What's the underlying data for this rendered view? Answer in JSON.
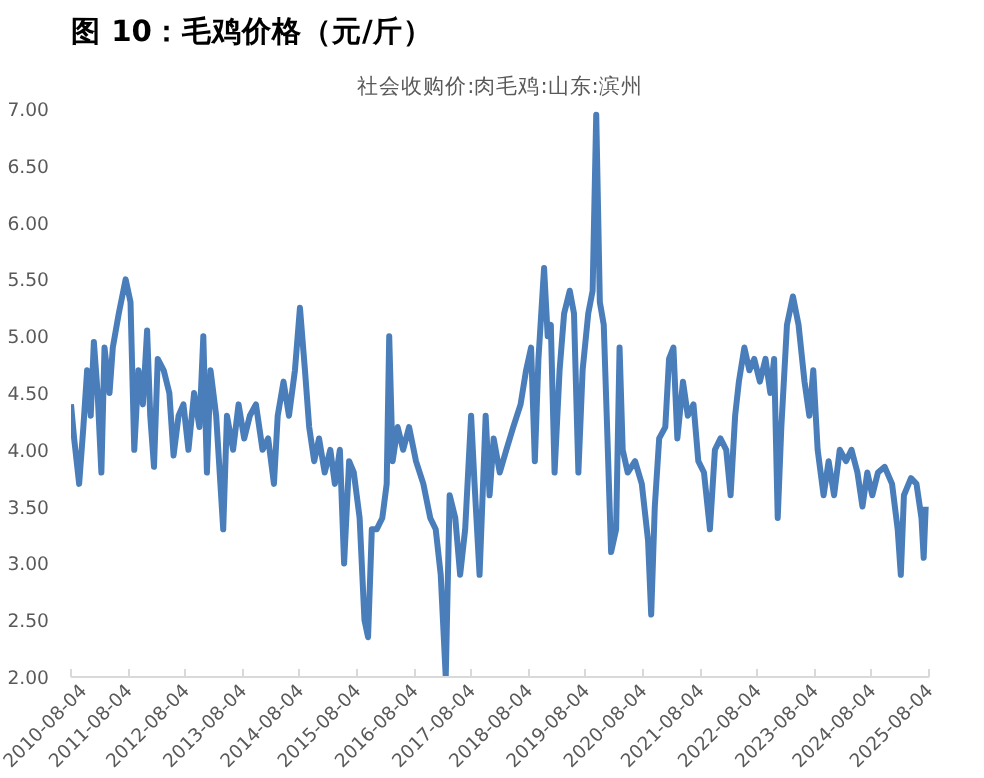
{
  "chart_data": {
    "type": "line",
    "title": "图 10：毛鸡价格（元/斤）",
    "subtitle": "社会收购价:肉毛鸡:山东:滨州",
    "xlim": [
      "2010-08-04",
      "2025-08-04"
    ],
    "xticks": [
      "2010-08-04",
      "2011-08-04",
      "2012-08-04",
      "2013-08-04",
      "2014-08-04",
      "2015-08-04",
      "2016-08-04",
      "2017-08-04",
      "2018-08-04",
      "2019-08-04",
      "2020-08-04",
      "2021-08-04",
      "2022-08-04",
      "2023-08-04",
      "2024-08-04",
      "2025-08-04"
    ],
    "ylim": [
      2,
      7
    ],
    "yticks": [
      {
        "value": 2,
        "label": "2.00"
      },
      {
        "value": 2.5,
        "label": "2.50"
      },
      {
        "value": 3,
        "label": "3.00"
      },
      {
        "value": 3.5,
        "label": "3.50"
      },
      {
        "value": 4,
        "label": "4.00"
      },
      {
        "value": 4.5,
        "label": "4.50"
      },
      {
        "value": 5,
        "label": "5.00"
      },
      {
        "value": 5.5,
        "label": "5.50"
      },
      {
        "value": 6,
        "label": "6.00"
      },
      {
        "value": 6.5,
        "label": "6.50"
      },
      {
        "value": 7,
        "label": "7.00"
      }
    ],
    "grid": false,
    "line_style": "solid",
    "marker": "none",
    "series": [
      {
        "color": "#4a7ebb",
        "x": [
          "2010-08-04",
          "2010-08-24",
          "2010-09-25",
          "2010-10-22",
          "2010-11-15",
          "2010-12-08",
          "2010-12-28",
          "2011-01-21",
          "2011-02-14",
          "2011-03-06",
          "2011-04-07",
          "2011-04-28",
          "2011-06-05",
          "2011-07-19",
          "2011-08-19",
          "2011-09-12",
          "2011-10-09",
          "2011-11-06",
          "2011-12-03",
          "2011-12-23",
          "2012-01-16",
          "2012-02-09",
          "2012-03-18",
          "2012-04-23",
          "2012-05-20",
          "2012-06-21",
          "2012-07-22",
          "2012-08-23",
          "2012-09-28",
          "2012-11-01",
          "2012-11-26",
          "2012-12-19",
          "2013-01-11",
          "2013-02-16",
          "2013-04-02",
          "2013-04-26",
          "2013-06-04",
          "2013-07-09",
          "2013-08-14",
          "2013-09-19",
          "2013-10-28",
          "2013-12-09",
          "2014-01-14",
          "2014-02-20",
          "2014-03-16",
          "2014-04-22",
          "2014-05-27",
          "2014-07-04",
          "2014-08-05",
          "2014-09-06",
          "2014-10-03",
          "2014-11-04",
          "2014-12-05",
          "2015-01-10",
          "2015-02-15",
          "2015-03-16",
          "2015-04-17",
          "2015-05-14",
          "2015-06-15",
          "2015-07-15",
          "2015-08-21",
          "2015-09-21",
          "2015-10-14",
          "2015-11-07",
          "2015-12-08",
          "2016-01-13",
          "2016-02-10",
          "2016-02-26",
          "2016-03-19",
          "2016-04-20",
          "2016-05-25",
          "2016-07-02",
          "2016-08-15",
          "2016-10-01",
          "2016-11-14",
          "2016-12-19",
          "2017-01-20",
          "2017-02-21",
          "2017-03-18",
          "2017-04-23",
          "2017-05-24",
          "2017-06-25",
          "2017-08-02",
          "2017-08-24",
          "2017-09-25",
          "2017-11-03",
          "2017-11-28",
          "2017-12-24",
          "2018-02-01",
          "2018-03-15",
          "2018-04-28",
          "2018-06-14",
          "2018-07-19",
          "2018-08-20",
          "2018-09-13",
          "2018-10-06",
          "2018-11-11",
          "2018-12-04",
          "2018-12-24",
          "2019-01-17",
          "2019-02-18",
          "2019-03-19",
          "2019-04-24",
          "2019-05-21",
          "2019-06-18",
          "2019-07-15",
          "2019-08-20",
          "2019-09-17",
          "2019-10-10",
          "2019-11-02",
          "2019-11-27",
          "2019-12-16",
          "2020-01-13",
          "2020-02-14",
          "2020-03-07",
          "2020-03-27",
          "2020-04-28",
          "2020-06-14",
          "2020-07-27",
          "2020-09-05",
          "2020-09-25",
          "2020-10-18",
          "2020-11-15",
          "2020-12-24",
          "2021-01-17",
          "2021-02-14",
          "2021-03-11",
          "2021-04-16",
          "2021-05-17",
          "2021-06-22",
          "2021-07-23",
          "2021-08-28",
          "2021-10-05",
          "2021-11-06",
          "2021-12-11",
          "2022-01-17",
          "2022-02-14",
          "2022-03-15",
          "2022-04-08",
          "2022-05-13",
          "2022-06-14",
          "2022-07-15",
          "2022-08-20",
          "2022-09-25",
          "2022-10-26",
          "2022-11-19",
          "2022-12-12",
          "2023-01-04",
          "2023-02-09",
          "2023-03-19",
          "2023-04-24",
          "2023-06-01",
          "2023-07-02",
          "2023-07-27",
          "2023-08-24",
          "2023-10-01",
          "2023-11-02",
          "2023-12-07",
          "2024-01-12",
          "2024-02-21",
          "2024-03-27",
          "2024-05-04",
          "2024-06-05",
          "2024-07-06",
          "2024-08-07",
          "2024-09-12",
          "2024-10-25",
          "2024-12-11",
          "2025-01-16",
          "2025-02-05",
          "2025-02-25",
          "2025-04-11",
          "2025-05-16",
          "2025-06-17",
          "2025-07-01",
          "2025-07-14"
        ],
        "values": [
          4.4,
          4.1,
          3.7,
          4.2,
          4.7,
          4.3,
          4.95,
          4.5,
          3.8,
          4.9,
          4.5,
          4.9,
          5.2,
          5.5,
          5.3,
          4.0,
          4.7,
          4.4,
          5.05,
          4.3,
          3.85,
          4.8,
          4.7,
          4.5,
          3.95,
          4.3,
          4.4,
          4.0,
          4.5,
          4.2,
          5.0,
          3.8,
          4.7,
          4.3,
          3.3,
          4.3,
          4.0,
          4.4,
          4.1,
          4.3,
          4.4,
          4.0,
          4.1,
          3.7,
          4.3,
          4.6,
          4.3,
          4.7,
          5.25,
          4.7,
          4.2,
          3.9,
          4.1,
          3.8,
          4.0,
          3.7,
          4.0,
          3.0,
          3.9,
          3.8,
          3.4,
          2.5,
          2.35,
          3.3,
          3.3,
          3.4,
          3.7,
          5.0,
          3.9,
          4.2,
          4.0,
          4.2,
          3.9,
          3.7,
          3.4,
          3.3,
          2.9,
          2.0,
          3.6,
          3.4,
          2.9,
          3.3,
          4.3,
          3.7,
          2.9,
          4.3,
          3.6,
          4.1,
          3.8,
          4.0,
          4.2,
          4.4,
          4.7,
          4.9,
          3.9,
          4.8,
          5.6,
          5.0,
          5.1,
          3.8,
          4.7,
          5.2,
          5.4,
          5.2,
          3.8,
          4.7,
          5.2,
          5.4,
          6.95,
          5.3,
          5.1,
          4.3,
          3.1,
          3.3,
          4.9,
          4.0,
          3.8,
          3.9,
          3.7,
          3.2,
          2.55,
          3.5,
          4.1,
          4.2,
          4.8,
          4.9,
          4.1,
          4.6,
          4.3,
          4.4,
          3.9,
          3.8,
          3.3,
          4.0,
          4.1,
          4.0,
          3.6,
          4.3,
          4.6,
          4.9,
          4.7,
          4.8,
          4.6,
          4.8,
          4.5,
          4.8,
          3.4,
          4.2,
          5.1,
          5.35,
          5.1,
          4.6,
          4.3,
          4.7,
          4.0,
          3.6,
          3.9,
          3.6,
          4.0,
          3.9,
          4.0,
          3.8,
          3.5,
          3.8,
          3.6,
          3.8,
          3.85,
          3.7,
          3.3,
          2.9,
          3.6,
          3.75,
          3.7,
          3.4,
          3.05,
          3.5
        ]
      }
    ]
  }
}
